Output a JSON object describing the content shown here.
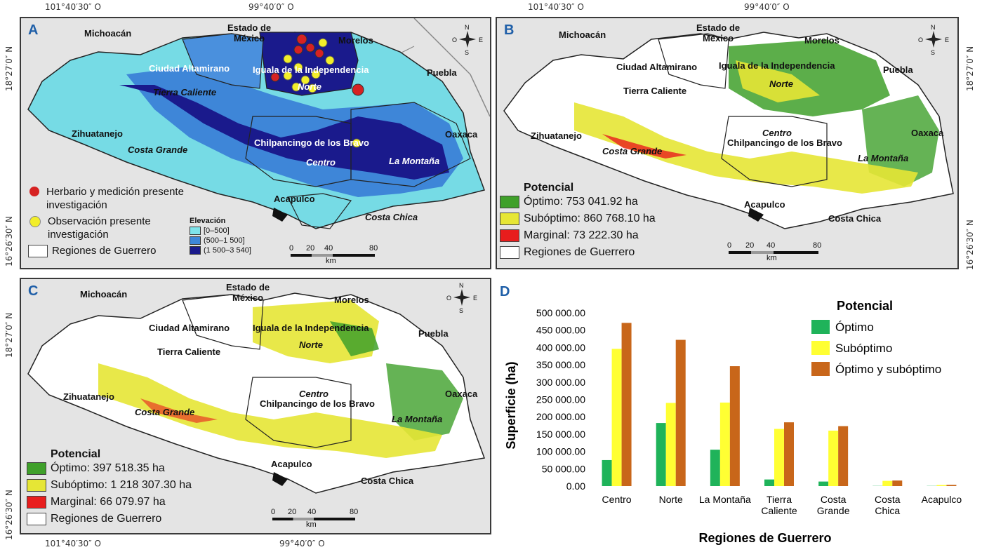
{
  "coords": {
    "lon_left": "101°40′30″ O",
    "lon_right": "99°40′0″ O",
    "lat_top": "18°27′0″ N",
    "lat_bottom": "16°26′30″ N"
  },
  "states": {
    "michoacan": "Michoacán",
    "edomex_1": "Estado de",
    "edomex_2": "México",
    "morelos": "Morelos",
    "puebla": "Puebla",
    "oaxaca": "Oaxaca"
  },
  "regions": {
    "ciudad_altamirano": "Ciudad Altamirano",
    "iguala": "Iguala de la Independencia",
    "norte": "Norte",
    "tierra_caliente": "Tierra Caliente",
    "zihuatanejo": "Zihuatanejo",
    "costa_grande": "Costa Grande",
    "chilpancingo": "Chilpancingo de los Bravo",
    "centro": "Centro",
    "la_montana": "La Montaña",
    "acapulco": "Acapulco",
    "costa_chica": "Costa Chica"
  },
  "compass": {
    "n": "N",
    "s": "S",
    "e": "E",
    "o": "O"
  },
  "scale": {
    "t0": "0",
    "t1": "20",
    "t2": "40",
    "t3": "80",
    "unit": "km"
  },
  "panels": {
    "a": {
      "label": "A",
      "legend": {
        "herbario": "Herbario y medición presente investigación",
        "observacion": "Observación presente investigación",
        "regiones": "Regiones de Guerrero"
      },
      "elevation": {
        "title": "Elevación",
        "classes": [
          "[0–500]",
          "(500–1 500]",
          "(1 500–3 540]"
        ],
        "colors": [
          "#7fe3ea",
          "#3e86d8",
          "#1a1a8c"
        ]
      }
    },
    "b": {
      "label": "B",
      "legend": {
        "title": "Potencial",
        "optimo": "Óptimo: 753 041.92 ha",
        "suboptimo": "Subóptimo: 860 768.10 ha",
        "marginal": "Marginal: 73 222.30 ha",
        "regiones": "Regiones de Guerrero"
      }
    },
    "c": {
      "label": "C",
      "legend": {
        "title": "Potencial",
        "optimo": "Óptimo: 397 518.35 ha",
        "suboptimo": "Subóptimo: 1 218 307.30 ha",
        "marginal": "Marginal: 66 079.97 ha",
        "regiones": "Regiones de Guerrero"
      }
    },
    "d": {
      "label": "D"
    }
  },
  "colors": {
    "optimo": "#3fa02a",
    "suboptimo": "#e6e635",
    "marginal": "#e81d1d",
    "herbario": "#d62222",
    "observacion": "#f2ee2a",
    "bar_optimo": "#1fb35a",
    "bar_suboptimo": "#ffff33",
    "bar_ambos": "#c8661a"
  },
  "chart_data": {
    "type": "bar",
    "title": "",
    "xlabel": "Regiones de Guerrero",
    "ylabel": "Superficie (ha)",
    "ylim": [
      0,
      500000
    ],
    "yticks": [
      "0.00",
      "50 000.00",
      "100 000.00",
      "150 000.00",
      "200 000.00",
      "250 000.00",
      "300 000.00",
      "350 000.00",
      "400 000.00",
      "450 000.00",
      "500 000.00"
    ],
    "legend_title": "Potencial",
    "legend_position": "top-right",
    "grid": false,
    "categories": [
      [
        "Centro"
      ],
      [
        "Norte"
      ],
      [
        "La Montaña"
      ],
      [
        "Tierra",
        "Caliente"
      ],
      [
        "Costa",
        "Grande"
      ],
      [
        "Costa",
        "Chica"
      ],
      [
        "Acapulco"
      ]
    ],
    "series": [
      {
        "name": "Óptimo",
        "values": [
          75000,
          182000,
          105000,
          19000,
          13000,
          500,
          500
        ]
      },
      {
        "name": "Subóptimo",
        "values": [
          396000,
          240000,
          241000,
          165000,
          160000,
          15000,
          3000
        ]
      },
      {
        "name": "Óptimo y subóptimo",
        "values": [
          471000,
          422000,
          346000,
          184000,
          173000,
          16000,
          3500
        ]
      }
    ]
  }
}
